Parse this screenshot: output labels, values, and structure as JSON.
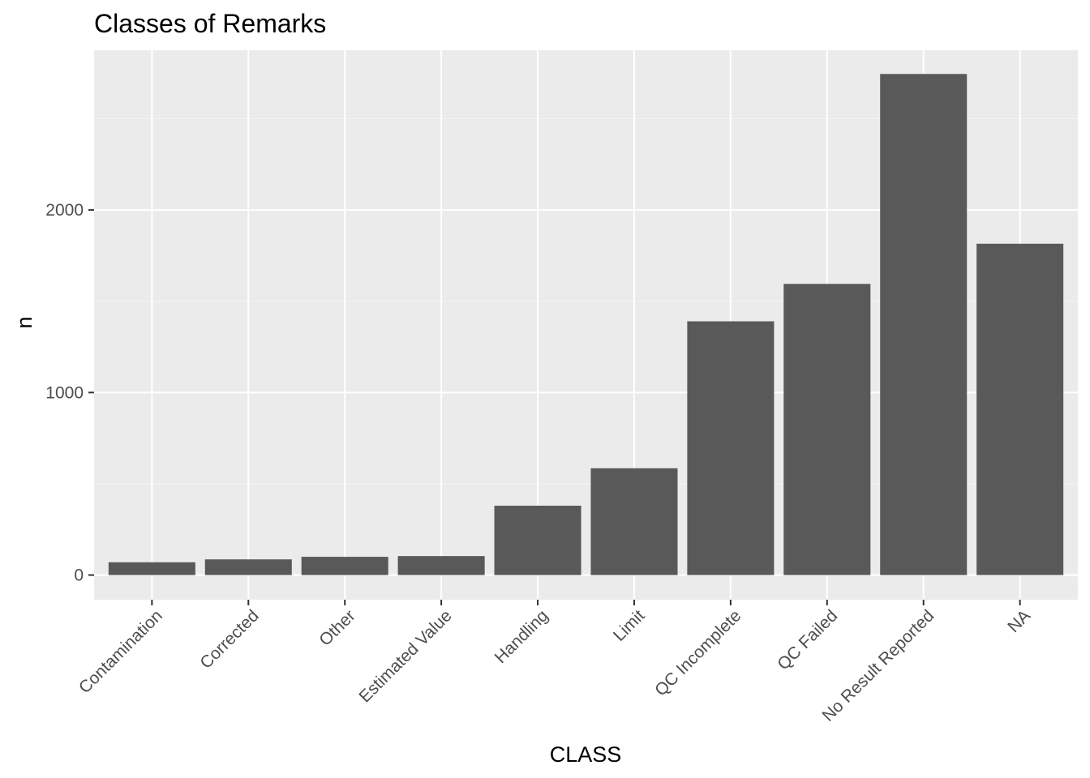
{
  "chart_data": {
    "type": "bar",
    "title": "Classes of Remarks",
    "xlabel": "CLASS",
    "ylabel": "n",
    "categories": [
      "Contamination",
      "Corrected",
      "Other",
      "Estimated Value",
      "Handling",
      "Limit",
      "QC Incomplete",
      "QC Failed",
      "No Result Reported",
      "NA"
    ],
    "values": [
      70,
      86,
      100,
      104,
      380,
      585,
      1390,
      1595,
      2745,
      1815
    ],
    "ylim": [
      -135,
      2875
    ],
    "yticks": [
      0,
      1000,
      2000
    ],
    "ytick_labels": [
      "0",
      "1000",
      "2000"
    ],
    "grid": true,
    "legend": "none",
    "colors": {
      "bar": "#595959",
      "panel": "#ebebeb",
      "grid_major": "#ffffff",
      "grid_minor": "#f5f5f5",
      "tick_text": "#4d4d4d",
      "tick_mark": "#333333"
    }
  }
}
